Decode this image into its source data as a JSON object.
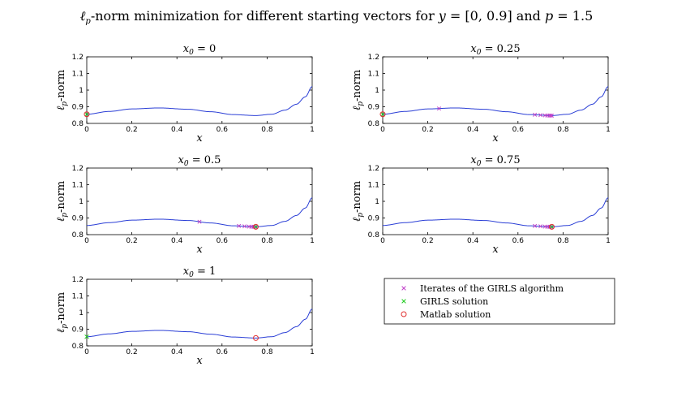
{
  "figure_title": "ℓp-norm minimization for different starting vectors for y = [0, 0.9] and p = 1.5",
  "colors": {
    "curve": "#2b3fd6",
    "iterates": "#c040c8",
    "girls": "#22cc22",
    "matlab": "#e03030"
  },
  "chart_data": [
    {
      "type": "line",
      "title": "x0 = 0",
      "xlabel": "x",
      "ylabel": "ℓp-norm",
      "xlim": [
        0,
        1
      ],
      "ylim": [
        0.8,
        1.2
      ],
      "xticks": [
        "0",
        "0.2",
        "0.4",
        "0.6",
        "0.8",
        "1"
      ],
      "yticks": [
        "0.8",
        "0.9",
        "1",
        "1.1",
        "1.2"
      ],
      "iterates": [],
      "girls_solution": [
        0,
        0.855
      ],
      "matlab_solution": [
        0,
        0.855
      ]
    },
    {
      "type": "line",
      "title": "x0 = 0.25",
      "xlabel": "x",
      "ylabel": "ℓp-norm",
      "xlim": [
        0,
        1
      ],
      "ylim": [
        0.8,
        1.2
      ],
      "xticks": [
        "0",
        "0.2",
        "0.4",
        "0.6",
        "0.8",
        "1"
      ],
      "yticks": [
        "0.8",
        "0.9",
        "1",
        "1.1",
        "1.2"
      ],
      "iterates": [
        0.25,
        0.675,
        0.7,
        0.72,
        0.73,
        0.74,
        0.745,
        0.75
      ],
      "girls_solution": [
        0,
        0.855
      ],
      "matlab_solution": [
        0,
        0.855
      ]
    },
    {
      "type": "line",
      "title": "x0 = 0.5",
      "xlabel": "x",
      "ylabel": "ℓp-norm",
      "xlim": [
        0,
        1
      ],
      "ylim": [
        0.8,
        1.2
      ],
      "xticks": [
        "0",
        "0.2",
        "0.4",
        "0.6",
        "0.8",
        "1"
      ],
      "yticks": [
        "0.8",
        "0.9",
        "1",
        "1.1",
        "1.2"
      ],
      "iterates": [
        0.5,
        0.675,
        0.7,
        0.72,
        0.73,
        0.74,
        0.745,
        0.75
      ],
      "girls_solution": [
        0.75,
        0.847
      ],
      "matlab_solution": [
        0.75,
        0.847
      ]
    },
    {
      "type": "line",
      "title": "x0 = 0.75",
      "xlabel": "x",
      "ylabel": "ℓp-norm",
      "xlim": [
        0,
        1
      ],
      "ylim": [
        0.8,
        1.2
      ],
      "xticks": [
        "0",
        "0.2",
        "0.4",
        "0.6",
        "0.8",
        "1"
      ],
      "yticks": [
        "0.8",
        "0.9",
        "1",
        "1.1",
        "1.2"
      ],
      "iterates": [
        0.675,
        0.7,
        0.72,
        0.73,
        0.74,
        0.745,
        0.75
      ],
      "girls_solution": [
        0.75,
        0.847
      ],
      "matlab_solution": [
        0.75,
        0.847
      ]
    },
    {
      "type": "line",
      "title": "x0 = 1",
      "xlabel": "x",
      "ylabel": "ℓp-norm",
      "xlim": [
        0,
        1
      ],
      "ylim": [
        0.8,
        1.2
      ],
      "xticks": [
        "0",
        "0.2",
        "0.4",
        "0.6",
        "0.8",
        "1"
      ],
      "yticks": [
        "0.8",
        "0.9",
        "1",
        "1.1",
        "1.2"
      ],
      "iterates": [],
      "girls_solution": [
        0,
        0.855
      ],
      "matlab_solution": [
        0.75,
        0.847
      ]
    }
  ],
  "legend": {
    "iterates": "Iterates of the GIRLS algorithm",
    "girls": "GIRLS solution",
    "matlab": "Matlab solution"
  }
}
